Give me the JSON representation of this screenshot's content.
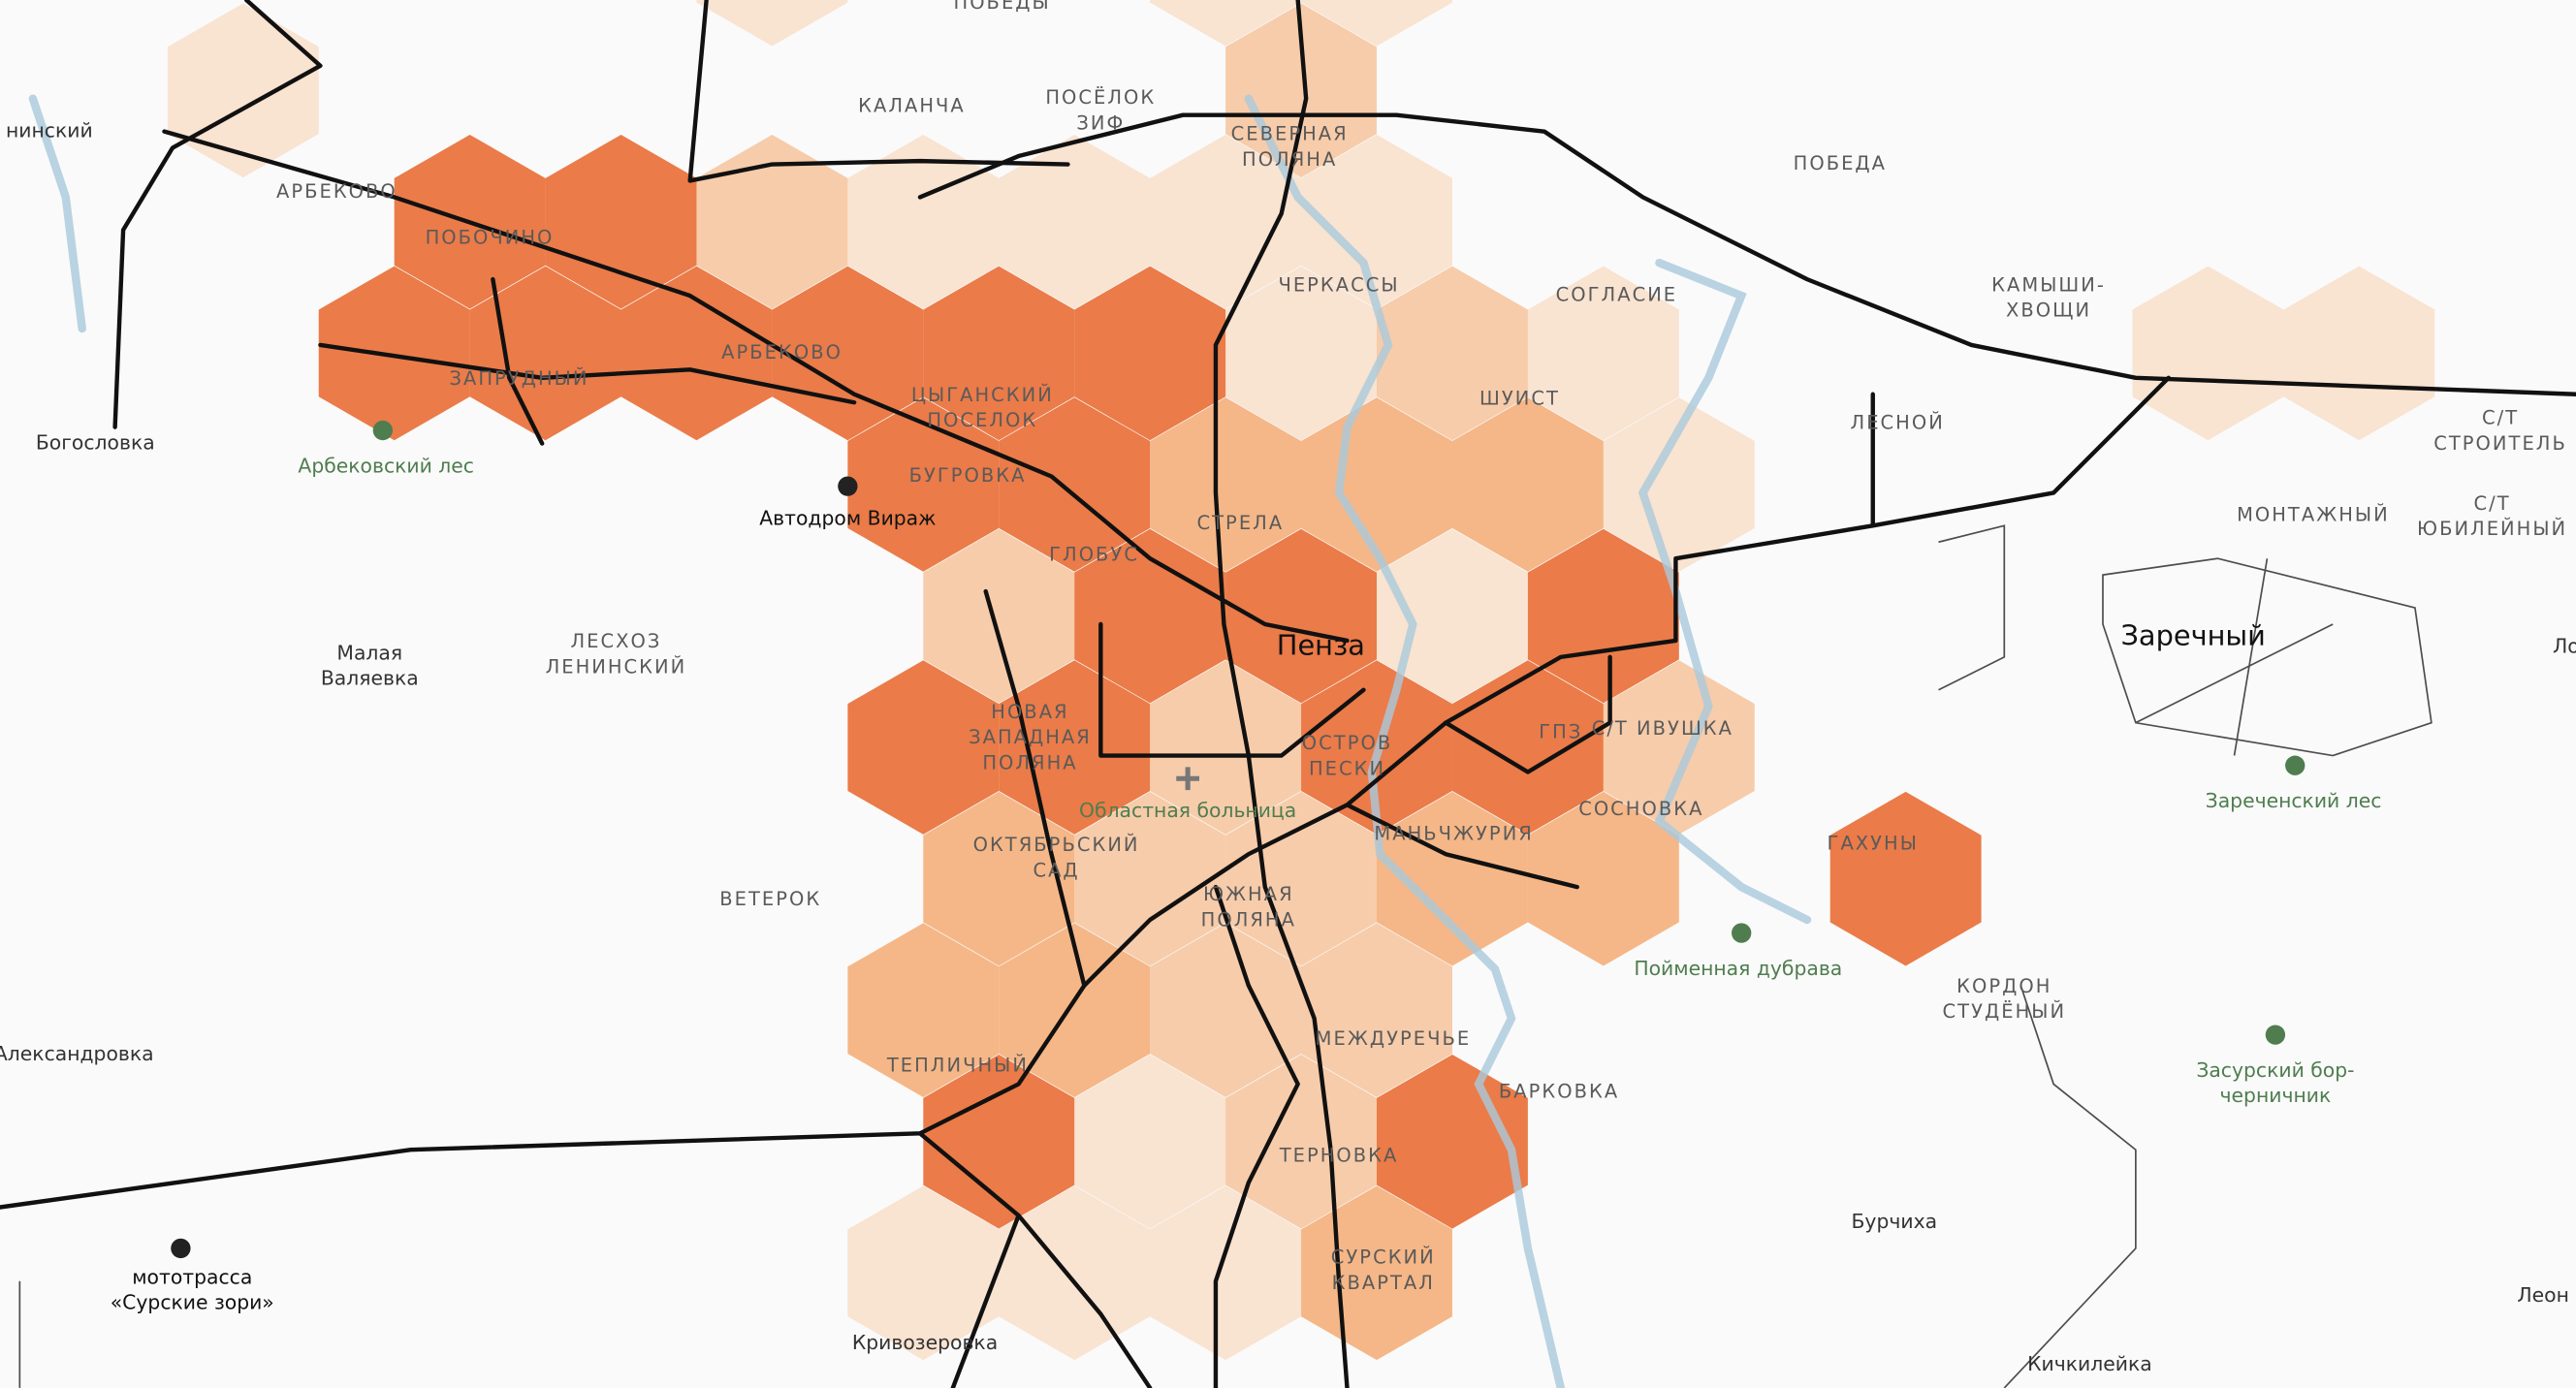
{
  "places": [
    {
      "lines": [
        "ПОБЕДЫ"
      ]
    },
    {
      "lines": [
        "нинский"
      ]
    },
    {
      "lines": [
        "КАЛАНЧА"
      ]
    },
    {
      "lines": [
        "ПОСЁЛОК",
        "ЗИФ"
      ]
    },
    {
      "lines": [
        "СЕВЕРНАЯ",
        "ПОЛЯНА"
      ]
    },
    {
      "lines": [
        "ПОБЕДА"
      ]
    },
    {
      "lines": [
        "АРБЕКОВО"
      ]
    },
    {
      "lines": [
        "ПОБОЧИНО"
      ]
    },
    {
      "lines": [
        "ЧЕРКАССЫ"
      ]
    },
    {
      "lines": [
        "СОГЛАСИЕ"
      ]
    },
    {
      "lines": [
        "КАМЫШИ-",
        "ХВОЩИ"
      ]
    },
    {
      "lines": [
        "АРБЕКОВО"
      ]
    },
    {
      "lines": [
        "ЗАПРУДНЫЙ"
      ]
    },
    {
      "lines": [
        "ЦЫГАНСКИЙ",
        "ПОСЕЛОК"
      ]
    },
    {
      "lines": [
        "ШУИСТ"
      ]
    },
    {
      "lines": [
        "ЛЕСНОЙ"
      ]
    },
    {
      "lines": [
        "С/Т",
        "СТРОИТЕЛЬ"
      ]
    },
    {
      "lines": [
        "Богословка"
      ]
    },
    {
      "lines": [
        "Арбековский лес"
      ]
    },
    {
      "lines": [
        "БУГРОВКА"
      ]
    },
    {
      "lines": [
        "Автодром Вираж"
      ]
    },
    {
      "lines": [
        "С/Т",
        "ЮБИЛЕЙНЫЙ"
      ]
    },
    {
      "lines": [
        "МОНТАЖНЫЙ"
      ]
    },
    {
      "lines": [
        "СТРЕЛА"
      ]
    },
    {
      "lines": [
        "ГЛОБУС"
      ]
    },
    {
      "lines": [
        "Заречный"
      ]
    },
    {
      "lines": [
        "Пенза"
      ]
    },
    {
      "lines": [
        "Ло"
      ]
    },
    {
      "lines": [
        "Малая",
        "Валяевка"
      ]
    },
    {
      "lines": [
        "ЛЕСХОЗ",
        "ЛЕНИНСКИЙ"
      ]
    },
    {
      "lines": [
        "НОВАЯ",
        "ЗАПАДНАЯ",
        "ПОЛЯНА"
      ]
    },
    {
      "lines": [
        "ГПЗ"
      ]
    },
    {
      "lines": [
        "С/Т ИВУШКА"
      ]
    },
    {
      "lines": [
        "ОСТРОВ",
        "ПЕСКИ"
      ]
    },
    {
      "lines": [
        "Областная больница"
      ]
    },
    {
      "lines": [
        "СОСНОВКА"
      ]
    },
    {
      "lines": [
        "Зареченский лес"
      ]
    },
    {
      "lines": [
        "МАНЬЧЖУРИЯ"
      ]
    },
    {
      "lines": [
        "ГАХУНЫ"
      ]
    },
    {
      "lines": [
        "ОКТЯБРЬСКИЙ",
        "САД"
      ]
    },
    {
      "lines": [
        "ВЕТЕРОК"
      ]
    },
    {
      "lines": [
        "ЮЖНАЯ",
        "ПОЛЯНА"
      ]
    },
    {
      "lines": [
        "Пойменная дубрава"
      ]
    },
    {
      "lines": [
        "КОРДОН",
        "СТУДЁНЫЙ"
      ]
    },
    {
      "lines": [
        "МЕЖДУРЕЧЬЕ"
      ]
    },
    {
      "lines": [
        "Александровка"
      ]
    },
    {
      "lines": [
        "ТЕПЛИЧНЫЙ"
      ]
    },
    {
      "lines": [
        "Засурский бор-",
        "черничник"
      ]
    },
    {
      "lines": [
        "БАРКОВКА"
      ]
    },
    {
      "lines": [
        "ТЕРНОВКА"
      ]
    },
    {
      "lines": [
        "Бурчиха"
      ]
    },
    {
      "lines": [
        "мототрасса",
        "«Сурские зори»"
      ]
    },
    {
      "lines": [
        "СУРСКИЙ",
        "КВАРТАЛ"
      ]
    },
    {
      "lines": [
        "Леон"
      ]
    },
    {
      "lines": [
        "Кривозеровка"
      ]
    },
    {
      "lines": [
        "Кичкилейка"
      ]
    }
  ]
}
